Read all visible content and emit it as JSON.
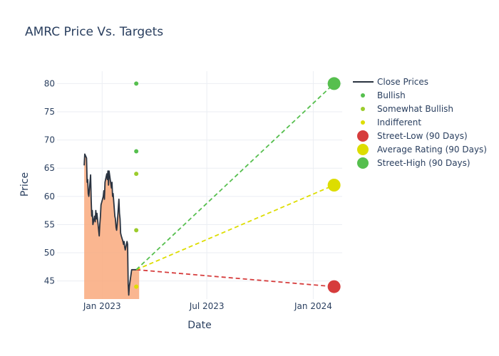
{
  "chart_data": {
    "type": "line",
    "title": "AMRC Price Vs. Targets",
    "xlabel": "Date",
    "ylabel": "Price",
    "xlim": [
      "2022-10-15",
      "2024-02-20"
    ],
    "ylim": [
      41.8,
      82.2
    ],
    "x_ticks": [
      {
        "date": "2023-01-01",
        "label": "Jan 2023"
      },
      {
        "date": "2023-07-01",
        "label": "Jul 2023"
      },
      {
        "date": "2024-01-01",
        "label": "Jan 2024"
      }
    ],
    "y_ticks": [
      45,
      50,
      55,
      60,
      65,
      70,
      75,
      80
    ],
    "grid": true,
    "legend_position": "right",
    "close_prices": {
      "name": "Close Prices",
      "color": "#2a3340",
      "fill_color": "#f9a97d",
      "x": [
        "2022-12-01",
        "2022-12-02",
        "2022-12-05",
        "2022-12-06",
        "2022-12-07",
        "2022-12-08",
        "2022-12-09",
        "2022-12-12",
        "2022-12-13",
        "2022-12-14",
        "2022-12-15",
        "2022-12-16",
        "2022-12-19",
        "2022-12-20",
        "2022-12-21",
        "2022-12-22",
        "2022-12-23",
        "2022-12-27",
        "2022-12-28",
        "2022-12-29",
        "2022-12-30",
        "2023-01-03",
        "2023-01-04",
        "2023-01-05",
        "2023-01-06",
        "2023-01-09",
        "2023-01-10",
        "2023-01-11",
        "2023-01-12",
        "2023-01-13",
        "2023-01-17",
        "2023-01-18",
        "2023-01-19",
        "2023-01-20",
        "2023-01-23",
        "2023-01-24",
        "2023-01-25",
        "2023-01-26",
        "2023-01-27",
        "2023-01-30",
        "2023-01-31",
        "2023-02-01",
        "2023-02-02",
        "2023-02-03",
        "2023-02-06",
        "2023-02-07",
        "2023-02-08",
        "2023-02-09",
        "2023-02-10",
        "2023-02-13",
        "2023-02-14",
        "2023-02-15",
        "2023-02-16",
        "2023-02-17",
        "2023-02-21",
        "2023-02-22",
        "2023-02-23",
        "2023-02-24",
        "2023-02-27",
        "2023-02-28",
        "2023-03-01",
        "2023-03-02",
        "2023-03-03",
        "2023-03-06"
      ],
      "y": [
        65.5,
        67.5,
        66.8,
        62.5,
        63.0,
        60.5,
        60.0,
        63.8,
        59.5,
        56.5,
        57.5,
        55.0,
        56.5,
        55.5,
        57.5,
        56.0,
        57.0,
        53.0,
        55.0,
        56.5,
        58.5,
        60.0,
        61.0,
        59.5,
        62.5,
        64.0,
        63.0,
        64.5,
        62.0,
        64.5,
        61.5,
        62.5,
        60.0,
        60.5,
        56.5,
        56.0,
        54.5,
        54.0,
        55.0,
        59.5,
        57.0,
        56.0,
        53.5,
        53.0,
        52.0,
        51.5,
        52.0,
        51.0,
        50.5,
        52.0,
        51.5,
        44.5,
        42.5,
        44.0,
        47.0,
        47.0,
        47.0,
        47.0,
        47.0,
        47.0,
        47.0,
        47.0,
        47.0,
        47.0
      ]
    },
    "analyst_ratings": [
      {
        "name": "Bullish",
        "color": "#56bf4e",
        "points": [
          {
            "x": "2023-03-01",
            "y": 80
          },
          {
            "x": "2023-03-01",
            "y": 68
          }
        ]
      },
      {
        "name": "Somewhat Bullish",
        "color": "#9ccc2c",
        "points": [
          {
            "x": "2023-03-01",
            "y": 64
          },
          {
            "x": "2023-03-01",
            "y": 54
          }
        ]
      },
      {
        "name": "Indifferent",
        "color": "#dddd00",
        "points": [
          {
            "x": "2023-03-01",
            "y": 44
          }
        ]
      }
    ],
    "targets": [
      {
        "name": "Street-Low (90 Days)",
        "color": "#d63c3c",
        "start": {
          "x": "2023-03-01",
          "y": 47
        },
        "end": {
          "x": "2024-02-06",
          "y": 44
        }
      },
      {
        "name": "Average Rating (90 Days)",
        "color": "#dddd00",
        "start": {
          "x": "2023-03-01",
          "y": 47
        },
        "end": {
          "x": "2024-02-06",
          "y": 62
        }
      },
      {
        "name": "Street-High (90 Days)",
        "color": "#56bf4e",
        "start": {
          "x": "2023-03-01",
          "y": 47
        },
        "end": {
          "x": "2024-02-06",
          "y": 80
        }
      }
    ],
    "legend": [
      {
        "label": "Close Prices",
        "symbol": "line",
        "color": "#2a3340"
      },
      {
        "label": "Bullish",
        "symbol": "small-dot",
        "color": "#56bf4e"
      },
      {
        "label": "Somewhat Bullish",
        "symbol": "small-dot",
        "color": "#9ccc2c"
      },
      {
        "label": "Indifferent",
        "symbol": "small-dot",
        "color": "#dddd00"
      },
      {
        "label": "Street-Low (90 Days)",
        "symbol": "big-dot",
        "color": "#d63c3c"
      },
      {
        "label": "Average Rating (90 Days)",
        "symbol": "big-dot",
        "color": "#dddd00"
      },
      {
        "label": "Street-High (90 Days)",
        "symbol": "big-dot",
        "color": "#56bf4e"
      }
    ]
  }
}
